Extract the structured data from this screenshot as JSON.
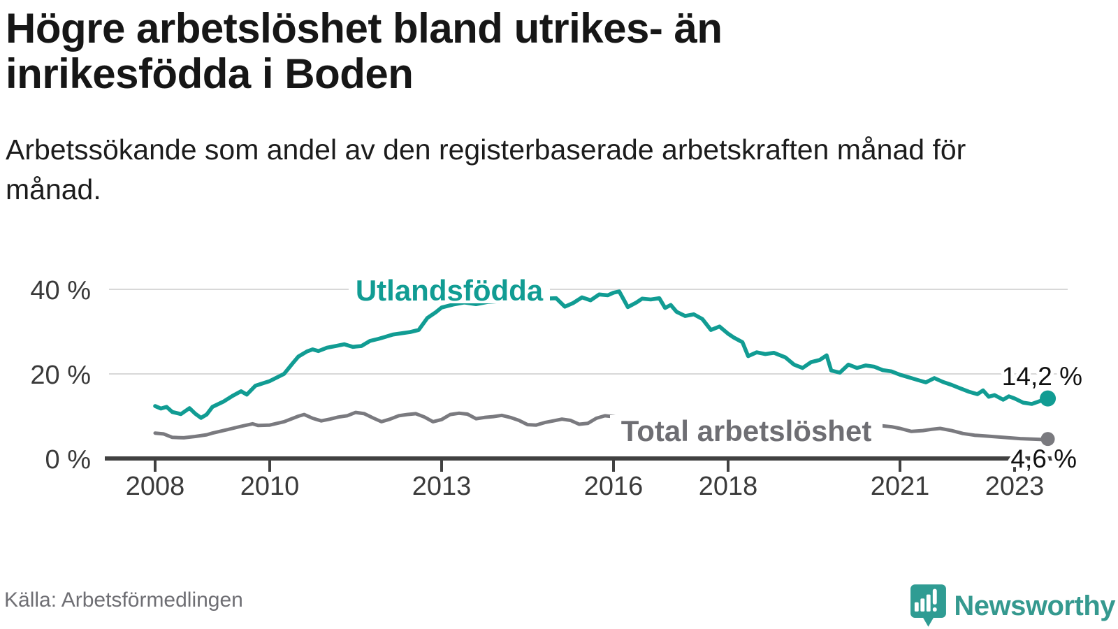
{
  "title": "Högre arbetslöshet bland utrikes- än inrikesfödda i Boden",
  "subtitle": "Arbetssökande som andel av den registerbaserade arbetskraften månad för månad.",
  "source": "Källa: Arbetsförmedlingen",
  "brand": {
    "name": "Newsworthy",
    "icon": "newsworthy-pin-icon",
    "color": "#35998f"
  },
  "colors": {
    "accent_teal": "#119c93",
    "line_gray": "#7a7a7f",
    "label_gray": "#6e6e73",
    "grid": "#d8d8d8",
    "axis": "#414141",
    "tick_text": "#3a3a3a",
    "value_text": "#111111"
  },
  "chart_data": {
    "type": "line",
    "title": "Högre arbetslöshet bland utrikes- än inrikesfödda i Boden",
    "xlabel": "",
    "ylabel": "Arbetssökande som andel av den registerbaserade arbetskraften",
    "grid": "horizontal-y",
    "legend_position": "inline-labels",
    "x_axis": {
      "start": 2008.0,
      "end": 2023.58,
      "tick_years": [
        2008,
        2010,
        2013,
        2016,
        2018,
        2021,
        2023
      ]
    },
    "y_axis": {
      "ticks": [
        0,
        20,
        40
      ],
      "tick_labels": [
        "0 %",
        "20 %",
        "40 %"
      ],
      "ylim": [
        0,
        44
      ],
      "unit": "%"
    },
    "series": [
      {
        "name": "Utlandsfödda",
        "color": "#119c93",
        "end_label": "14,2 %",
        "end_value": 14.2,
        "points": [
          [
            2008.0,
            12.4
          ],
          [
            2008.1,
            11.8
          ],
          [
            2008.2,
            12.2
          ],
          [
            2008.3,
            11.0
          ],
          [
            2008.45,
            10.5
          ],
          [
            2008.6,
            11.9
          ],
          [
            2008.7,
            10.6
          ],
          [
            2008.8,
            9.6
          ],
          [
            2008.9,
            10.4
          ],
          [
            2009.0,
            12.2
          ],
          [
            2009.2,
            13.5
          ],
          [
            2009.35,
            14.8
          ],
          [
            2009.5,
            15.9
          ],
          [
            2009.6,
            15.1
          ],
          [
            2009.75,
            17.2
          ],
          [
            2010.0,
            18.3
          ],
          [
            2010.25,
            20.0
          ],
          [
            2010.4,
            22.5
          ],
          [
            2010.5,
            24.1
          ],
          [
            2010.65,
            25.3
          ],
          [
            2010.75,
            25.8
          ],
          [
            2010.85,
            25.4
          ],
          [
            2011.0,
            26.2
          ],
          [
            2011.15,
            26.6
          ],
          [
            2011.3,
            27.0
          ],
          [
            2011.45,
            26.4
          ],
          [
            2011.6,
            26.6
          ],
          [
            2011.75,
            27.8
          ],
          [
            2011.9,
            28.3
          ],
          [
            2012.0,
            28.7
          ],
          [
            2012.15,
            29.3
          ],
          [
            2012.3,
            29.6
          ],
          [
            2012.45,
            29.9
          ],
          [
            2012.6,
            30.4
          ],
          [
            2012.75,
            33.2
          ],
          [
            2012.9,
            34.6
          ],
          [
            2013.0,
            35.7
          ],
          [
            2013.2,
            36.4
          ],
          [
            2013.4,
            36.9
          ],
          [
            2013.6,
            36.5
          ],
          [
            2013.8,
            37.0
          ],
          [
            2014.0,
            37.2
          ],
          [
            2014.2,
            37.6
          ],
          [
            2014.4,
            37.9
          ],
          [
            2014.6,
            37.5
          ],
          [
            2014.8,
            37.8
          ],
          [
            2015.0,
            37.9
          ],
          [
            2015.15,
            35.9
          ],
          [
            2015.3,
            36.8
          ],
          [
            2015.45,
            38.1
          ],
          [
            2015.6,
            37.4
          ],
          [
            2015.75,
            38.8
          ],
          [
            2015.9,
            38.6
          ],
          [
            2016.0,
            39.2
          ],
          [
            2016.1,
            39.5
          ],
          [
            2016.25,
            35.8
          ],
          [
            2016.4,
            36.9
          ],
          [
            2016.5,
            37.8
          ],
          [
            2016.65,
            37.6
          ],
          [
            2016.8,
            37.9
          ],
          [
            2016.9,
            35.6
          ],
          [
            2017.0,
            36.3
          ],
          [
            2017.1,
            34.7
          ],
          [
            2017.25,
            33.7
          ],
          [
            2017.4,
            34.1
          ],
          [
            2017.55,
            33.0
          ],
          [
            2017.7,
            30.4
          ],
          [
            2017.85,
            31.2
          ],
          [
            2018.0,
            29.5
          ],
          [
            2018.1,
            28.6
          ],
          [
            2018.25,
            27.5
          ],
          [
            2018.35,
            24.2
          ],
          [
            2018.5,
            25.1
          ],
          [
            2018.65,
            24.7
          ],
          [
            2018.8,
            25.0
          ],
          [
            2019.0,
            23.9
          ],
          [
            2019.15,
            22.2
          ],
          [
            2019.3,
            21.4
          ],
          [
            2019.45,
            22.8
          ],
          [
            2019.6,
            23.3
          ],
          [
            2019.72,
            24.4
          ],
          [
            2019.8,
            20.8
          ],
          [
            2019.95,
            20.3
          ],
          [
            2020.1,
            22.2
          ],
          [
            2020.25,
            21.4
          ],
          [
            2020.4,
            22.0
          ],
          [
            2020.55,
            21.7
          ],
          [
            2020.7,
            20.9
          ],
          [
            2020.85,
            20.6
          ],
          [
            2021.0,
            19.8
          ],
          [
            2021.15,
            19.2
          ],
          [
            2021.3,
            18.6
          ],
          [
            2021.45,
            18.0
          ],
          [
            2021.6,
            19.0
          ],
          [
            2021.75,
            18.1
          ],
          [
            2021.9,
            17.4
          ],
          [
            2022.05,
            16.6
          ],
          [
            2022.2,
            15.8
          ],
          [
            2022.35,
            15.2
          ],
          [
            2022.45,
            16.1
          ],
          [
            2022.55,
            14.6
          ],
          [
            2022.65,
            15.0
          ],
          [
            2022.8,
            13.9
          ],
          [
            2022.9,
            14.7
          ],
          [
            2023.0,
            14.2
          ],
          [
            2023.15,
            13.2
          ],
          [
            2023.3,
            12.9
          ],
          [
            2023.45,
            13.6
          ],
          [
            2023.58,
            14.2
          ]
        ]
      },
      {
        "name": "Total arbetslöshet",
        "color": "#7a7a7f",
        "end_label": "4,6 %",
        "end_value": 4.6,
        "points": [
          [
            2008.0,
            6.0
          ],
          [
            2008.15,
            5.8
          ],
          [
            2008.3,
            5.0
          ],
          [
            2008.5,
            4.9
          ],
          [
            2008.7,
            5.2
          ],
          [
            2008.9,
            5.6
          ],
          [
            2009.0,
            6.0
          ],
          [
            2009.25,
            6.8
          ],
          [
            2009.5,
            7.6
          ],
          [
            2009.7,
            8.2
          ],
          [
            2009.8,
            7.8
          ],
          [
            2010.0,
            7.9
          ],
          [
            2010.25,
            8.7
          ],
          [
            2010.5,
            10.0
          ],
          [
            2010.6,
            10.4
          ],
          [
            2010.75,
            9.5
          ],
          [
            2010.9,
            8.9
          ],
          [
            2011.05,
            9.3
          ],
          [
            2011.2,
            9.8
          ],
          [
            2011.35,
            10.1
          ],
          [
            2011.5,
            10.9
          ],
          [
            2011.65,
            10.6
          ],
          [
            2011.8,
            9.6
          ],
          [
            2011.95,
            8.7
          ],
          [
            2012.1,
            9.3
          ],
          [
            2012.25,
            10.1
          ],
          [
            2012.4,
            10.4
          ],
          [
            2012.55,
            10.6
          ],
          [
            2012.7,
            9.8
          ],
          [
            2012.85,
            8.7
          ],
          [
            2013.0,
            9.2
          ],
          [
            2013.15,
            10.4
          ],
          [
            2013.3,
            10.7
          ],
          [
            2013.45,
            10.5
          ],
          [
            2013.6,
            9.4
          ],
          [
            2013.75,
            9.7
          ],
          [
            2013.9,
            9.9
          ],
          [
            2014.05,
            10.2
          ],
          [
            2014.2,
            9.7
          ],
          [
            2014.35,
            9.0
          ],
          [
            2014.5,
            8.0
          ],
          [
            2014.65,
            7.9
          ],
          [
            2014.8,
            8.5
          ],
          [
            2014.95,
            8.9
          ],
          [
            2015.1,
            9.3
          ],
          [
            2015.25,
            9.0
          ],
          [
            2015.4,
            8.1
          ],
          [
            2015.55,
            8.3
          ],
          [
            2015.7,
            9.5
          ],
          [
            2015.85,
            10.1
          ],
          [
            2016.0,
            9.9
          ],
          [
            2016.2,
            9.5
          ],
          [
            2016.4,
            9.7
          ],
          [
            2016.6,
            9.4
          ],
          [
            2016.8,
            9.6
          ],
          [
            2017.0,
            9.0
          ],
          [
            2017.2,
            8.7
          ],
          [
            2017.4,
            8.9
          ],
          [
            2017.6,
            8.4
          ],
          [
            2017.8,
            8.1
          ],
          [
            2018.0,
            7.8
          ],
          [
            2018.2,
            7.6
          ],
          [
            2018.4,
            7.9
          ],
          [
            2018.6,
            7.6
          ],
          [
            2018.8,
            7.4
          ],
          [
            2019.0,
            7.2
          ],
          [
            2019.2,
            7.0
          ],
          [
            2019.4,
            7.2
          ],
          [
            2019.6,
            7.0
          ],
          [
            2019.8,
            6.9
          ],
          [
            2020.0,
            7.3
          ],
          [
            2020.2,
            8.0
          ],
          [
            2020.4,
            8.1
          ],
          [
            2020.55,
            7.9
          ],
          [
            2020.7,
            7.7
          ],
          [
            2020.85,
            7.5
          ],
          [
            2021.0,
            7.1
          ],
          [
            2021.2,
            6.4
          ],
          [
            2021.4,
            6.6
          ],
          [
            2021.55,
            6.9
          ],
          [
            2021.7,
            7.1
          ],
          [
            2021.9,
            6.6
          ],
          [
            2022.1,
            5.9
          ],
          [
            2022.3,
            5.5
          ],
          [
            2022.5,
            5.3
          ],
          [
            2022.7,
            5.1
          ],
          [
            2022.9,
            4.9
          ],
          [
            2023.1,
            4.7
          ],
          [
            2023.3,
            4.6
          ],
          [
            2023.45,
            4.5
          ],
          [
            2023.58,
            4.6
          ]
        ]
      }
    ]
  }
}
